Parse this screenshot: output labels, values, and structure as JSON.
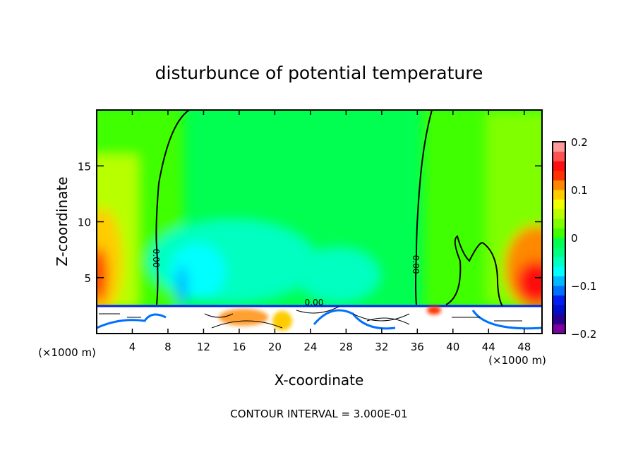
{
  "chart_data": {
    "type": "heatmap",
    "title": "disturbunce of potential temperature",
    "xlabel": "X-coordinate",
    "ylabel": "Z-coordinate",
    "x_unit_left": "(×1000 m)",
    "x_unit_right": "(×1000 m)",
    "xlim": [
      0,
      50
    ],
    "ylim": [
      0,
      20
    ],
    "xticks": [
      4,
      8,
      12,
      16,
      20,
      24,
      28,
      32,
      36,
      40,
      44,
      48
    ],
    "yticks": [
      5,
      10,
      15
    ],
    "contour_labels": [
      "0.00",
      "0.00",
      "0.00"
    ],
    "footer": "CONTOUR INTERVAL = 3.000E-01",
    "colorbar": {
      "min": -0.2,
      "max": 0.2,
      "step": 0.02,
      "tick_labels": [
        "0.2",
        "0.1",
        "0",
        "−0.1",
        "−0.2"
      ],
      "tick_values": [
        0.2,
        0.1,
        0,
        -0.1,
        -0.2
      ],
      "colors": [
        "#7a00a0",
        "#2a0090",
        "#0010c8",
        "#0020f0",
        "#0070ff",
        "#00b8ff",
        "#00ffff",
        "#00ffc0",
        "#00ff80",
        "#00ff50",
        "#10ff10",
        "#40ff00",
        "#80ff00",
        "#b8ff00",
        "#f0ff00",
        "#ffcc00",
        "#ff8800",
        "#ff3300",
        "#ff1010",
        "#ff5050",
        "#ff9a9a"
      ]
    }
  }
}
